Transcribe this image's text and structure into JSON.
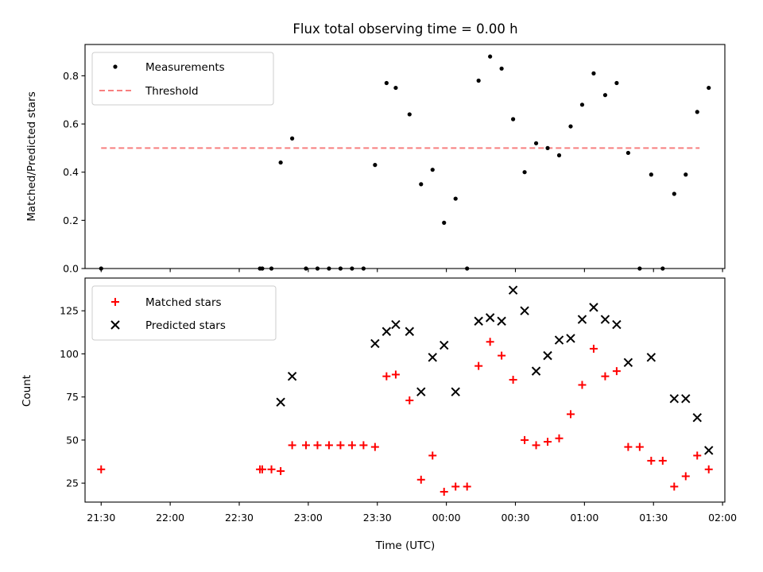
{
  "title": "Flux total observing time = 0.00 h",
  "chart_data": [
    {
      "type": "scatter",
      "ylabel": "Matched/Predicted stars",
      "ylim": [
        0,
        0.93
      ],
      "yticks": [
        0.0,
        0.2,
        0.4,
        0.6,
        0.8
      ],
      "ytick_labels": [
        "0.0",
        "0.2",
        "0.4",
        "0.6",
        "0.8"
      ],
      "legend_position": "upper-left",
      "threshold": {
        "name": "Threshold",
        "value": 0.5,
        "x_range": [
          "21:30",
          "01:50"
        ],
        "color": "#f87f7f"
      },
      "series": [
        {
          "name": "Measurements",
          "color": "#000000",
          "marker": "dot",
          "points": [
            [
              "21:30",
              0.0
            ],
            [
              "22:39",
              0.0
            ],
            [
              "22:40",
              0.0
            ],
            [
              "22:44",
              0.0
            ],
            [
              "22:48",
              0.44
            ],
            [
              "22:53",
              0.54
            ],
            [
              "22:59",
              0.0
            ],
            [
              "23:04",
              0.0
            ],
            [
              "23:09",
              0.0
            ],
            [
              "23:14",
              0.0
            ],
            [
              "23:19",
              0.0
            ],
            [
              "23:24",
              0.0
            ],
            [
              "23:29",
              0.43
            ],
            [
              "23:34",
              0.77
            ],
            [
              "23:38",
              0.75
            ],
            [
              "23:44",
              0.64
            ],
            [
              "23:49",
              0.35
            ],
            [
              "23:54",
              0.41
            ],
            [
              "23:59",
              0.19
            ],
            [
              "00:04",
              0.29
            ],
            [
              "00:09",
              0.0
            ],
            [
              "00:14",
              0.78
            ],
            [
              "00:19",
              0.88
            ],
            [
              "00:24",
              0.83
            ],
            [
              "00:29",
              0.62
            ],
            [
              "00:34",
              0.4
            ],
            [
              "00:39",
              0.52
            ],
            [
              "00:44",
              0.5
            ],
            [
              "00:49",
              0.47
            ],
            [
              "00:54",
              0.59
            ],
            [
              "00:59",
              0.68
            ],
            [
              "01:04",
              0.81
            ],
            [
              "01:09",
              0.72
            ],
            [
              "01:14",
              0.77
            ],
            [
              "01:19",
              0.48
            ],
            [
              "01:24",
              0.0
            ],
            [
              "01:29",
              0.39
            ],
            [
              "01:34",
              0.0
            ],
            [
              "01:39",
              0.31
            ],
            [
              "01:44",
              0.39
            ],
            [
              "01:49",
              0.65
            ],
            [
              "01:54",
              0.75
            ]
          ]
        }
      ]
    },
    {
      "type": "scatter",
      "xlabel": "Time (UTC)",
      "ylabel": "Count",
      "ylim": [
        14,
        144
      ],
      "yticks": [
        25,
        50,
        75,
        100,
        125
      ],
      "ytick_labels": [
        "25",
        "50",
        "75",
        "100",
        "125"
      ],
      "xlim": [
        "21:23",
        "02:01"
      ],
      "xticks": [
        "21:30",
        "22:00",
        "22:30",
        "23:00",
        "23:30",
        "00:00",
        "00:30",
        "01:00",
        "01:30",
        "02:00"
      ],
      "xtick_labels": [
        "21:30",
        "22:00",
        "22:30",
        "23:00",
        "23:30",
        "00:00",
        "00:30",
        "01:00",
        "01:30",
        "02:00"
      ],
      "legend_position": "upper-left",
      "series": [
        {
          "name": "Matched stars",
          "color": "#ff0000",
          "marker": "plus",
          "points": [
            [
              "21:30",
              33
            ],
            [
              "22:39",
              33
            ],
            [
              "22:40",
              33
            ],
            [
              "22:44",
              33
            ],
            [
              "22:48",
              32
            ],
            [
              "22:53",
              47
            ],
            [
              "22:59",
              47
            ],
            [
              "23:04",
              47
            ],
            [
              "23:09",
              47
            ],
            [
              "23:14",
              47
            ],
            [
              "23:19",
              47
            ],
            [
              "23:24",
              47
            ],
            [
              "23:29",
              46
            ],
            [
              "23:34",
              87
            ],
            [
              "23:38",
              88
            ],
            [
              "23:44",
              73
            ],
            [
              "23:49",
              27
            ],
            [
              "23:54",
              41
            ],
            [
              "23:59",
              20
            ],
            [
              "00:04",
              23
            ],
            [
              "00:09",
              23
            ],
            [
              "00:14",
              93
            ],
            [
              "00:19",
              107
            ],
            [
              "00:24",
              99
            ],
            [
              "00:29",
              85
            ],
            [
              "00:34",
              50
            ],
            [
              "00:39",
              47
            ],
            [
              "00:44",
              49
            ],
            [
              "00:49",
              51
            ],
            [
              "00:54",
              65
            ],
            [
              "00:59",
              82
            ],
            [
              "01:04",
              103
            ],
            [
              "01:09",
              87
            ],
            [
              "01:14",
              90
            ],
            [
              "01:19",
              46
            ],
            [
              "01:24",
              46
            ],
            [
              "01:29",
              38
            ],
            [
              "01:34",
              38
            ],
            [
              "01:39",
              23
            ],
            [
              "01:44",
              29
            ],
            [
              "01:49",
              41
            ],
            [
              "01:54",
              33
            ]
          ]
        },
        {
          "name": "Predicted stars",
          "color": "#000000",
          "marker": "x",
          "points": [
            [
              "22:48",
              72
            ],
            [
              "22:53",
              87
            ],
            [
              "23:29",
              106
            ],
            [
              "23:34",
              113
            ],
            [
              "23:38",
              117
            ],
            [
              "23:44",
              113
            ],
            [
              "23:49",
              78
            ],
            [
              "23:54",
              98
            ],
            [
              "23:59",
              105
            ],
            [
              "00:04",
              78
            ],
            [
              "00:14",
              119
            ],
            [
              "00:19",
              121
            ],
            [
              "00:24",
              119
            ],
            [
              "00:29",
              137
            ],
            [
              "00:34",
              125
            ],
            [
              "00:39",
              90
            ],
            [
              "00:44",
              99
            ],
            [
              "00:49",
              108
            ],
            [
              "00:54",
              109
            ],
            [
              "00:59",
              120
            ],
            [
              "01:04",
              127
            ],
            [
              "01:09",
              120
            ],
            [
              "01:14",
              117
            ],
            [
              "01:19",
              95
            ],
            [
              "01:29",
              98
            ],
            [
              "01:39",
              74
            ],
            [
              "01:44",
              74
            ],
            [
              "01:49",
              63
            ],
            [
              "01:54",
              44
            ]
          ]
        }
      ]
    }
  ]
}
